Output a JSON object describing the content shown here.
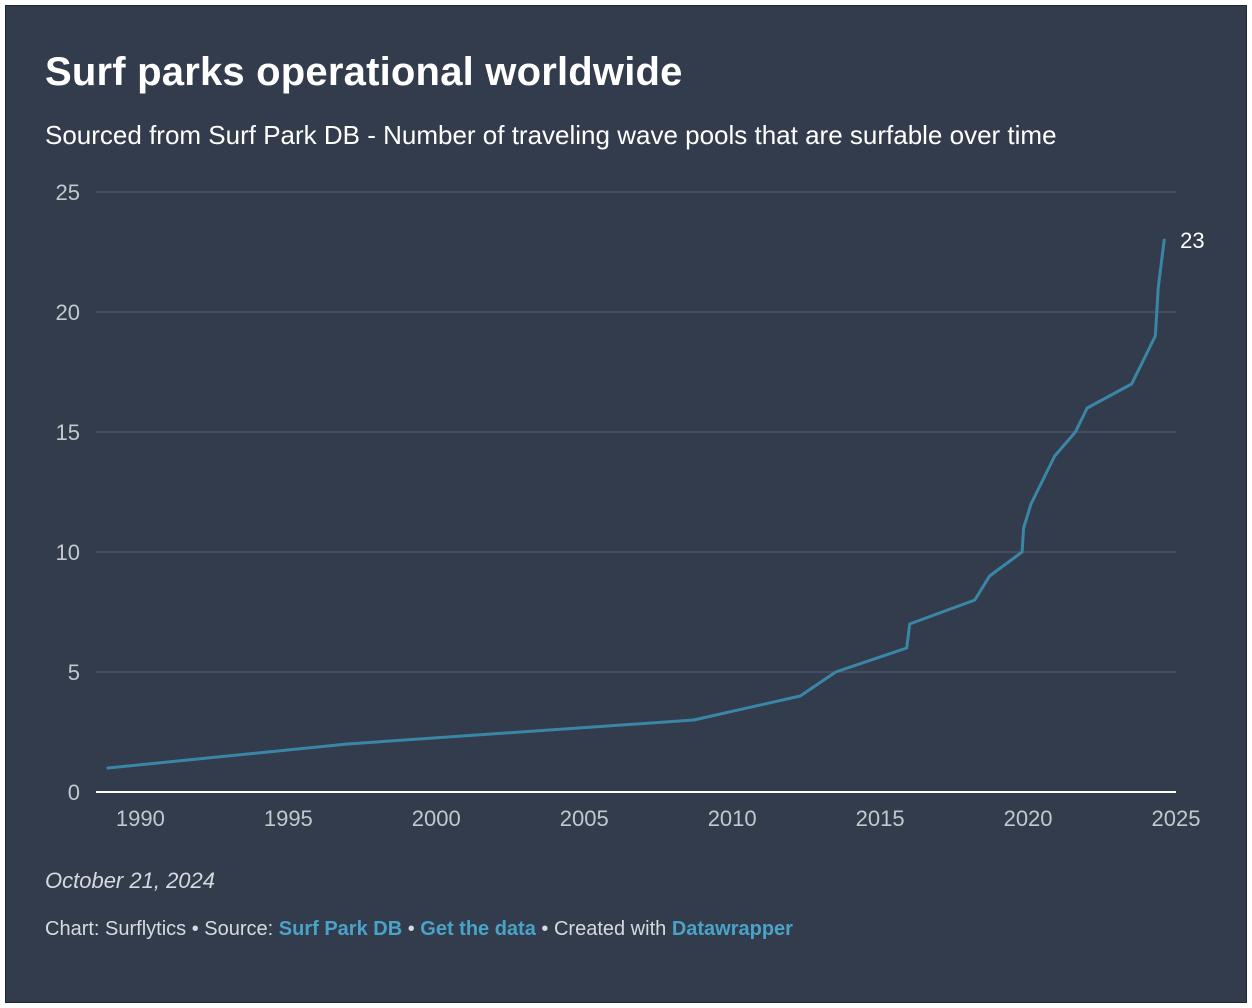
{
  "chart_data": {
    "type": "line",
    "title": "Surf parks operational worldwide",
    "subtitle": "Sourced from Surf Park DB - Number of traveling wave pools that are surfable over time",
    "xlabel": "",
    "ylabel": "",
    "xlim": [
      1988.5,
      2025
    ],
    "ylim": [
      0,
      25
    ],
    "x_ticks": [
      "1990",
      "1995",
      "2000",
      "2005",
      "2010",
      "2015",
      "2020",
      "2025"
    ],
    "y_ticks": [
      "0",
      "5",
      "10",
      "15",
      "20",
      "25"
    ],
    "grid": true,
    "legend": "none",
    "series": [
      {
        "color": "#3a86a6",
        "points": [
          [
            1988.9,
            1
          ],
          [
            1997.0,
            2
          ],
          [
            2008.7,
            3
          ],
          [
            2012.3,
            4
          ],
          [
            2013.5,
            5
          ],
          [
            2015.9,
            6
          ],
          [
            2016.0,
            7
          ],
          [
            2018.2,
            8
          ],
          [
            2018.7,
            9
          ],
          [
            2019.8,
            10
          ],
          [
            2019.85,
            11
          ],
          [
            2020.1,
            12
          ],
          [
            2020.9,
            14
          ],
          [
            2021.6,
            15
          ],
          [
            2022.0,
            16
          ],
          [
            2023.5,
            17
          ],
          [
            2023.9,
            18
          ],
          [
            2024.3,
            19
          ],
          [
            2024.35,
            20
          ],
          [
            2024.4,
            21
          ],
          [
            2024.6,
            23
          ]
        ],
        "end_label": "23"
      }
    ]
  },
  "date_text": "October 21, 2024",
  "footer": {
    "chart_credit": "Chart: Surflytics",
    "sep1": " • ",
    "source_prefix": "Source: ",
    "source_link": "Surf Park DB",
    "sep2": " • ",
    "get_data_link": "Get the data",
    "sep3": " • ",
    "created_prefix": "Created with ",
    "datawrapper_link": "Datawrapper"
  },
  "colors": {
    "background": "#323c4c",
    "line": "#3a86a6",
    "gridline": "#4a5566",
    "baseline": "#ffffff",
    "link": "#4aa3c7"
  }
}
